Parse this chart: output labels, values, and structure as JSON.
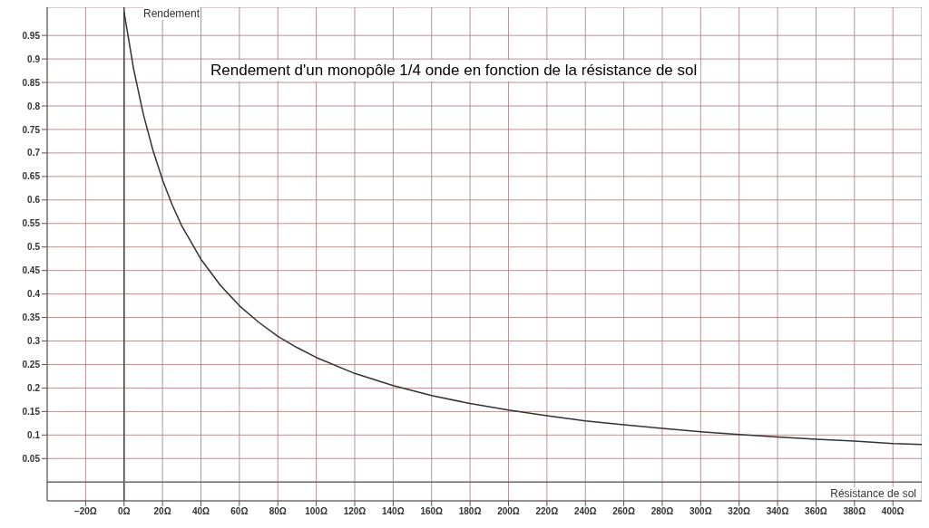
{
  "chart_data": {
    "type": "line",
    "title": "Rendement d'un monopôle 1/4 onde en fonction de la résistance de sol",
    "xlabel": "Résistance de sol",
    "ylabel": "Rendement",
    "series": [
      {
        "color": "#333333",
        "x": [
          0,
          5,
          10,
          15,
          20,
          25,
          30,
          40,
          50,
          60,
          70,
          80,
          90,
          100,
          120,
          140,
          160,
          180,
          200,
          220,
          240,
          260,
          280,
          300,
          320,
          340,
          360,
          380,
          400,
          415
        ],
        "values": [
          1.0,
          0.878,
          0.783,
          0.706,
          0.643,
          0.59,
          0.545,
          0.474,
          0.419,
          0.375,
          0.34,
          0.31,
          0.286,
          0.265,
          0.231,
          0.205,
          0.184,
          0.167,
          0.153,
          0.141,
          0.13,
          0.122,
          0.114,
          0.107,
          0.101,
          0.096,
          0.091,
          0.087,
          0.082,
          0.08
        ]
      }
    ],
    "xlim": [
      -40,
      415
    ],
    "ylim": [
      -0.04,
      1.01
    ],
    "xticks": [
      {
        "value": -20,
        "label": "−20Ω"
      },
      {
        "value": 0,
        "label": "0Ω"
      },
      {
        "value": 20,
        "label": "20Ω"
      },
      {
        "value": 40,
        "label": "40Ω"
      },
      {
        "value": 60,
        "label": "60Ω"
      },
      {
        "value": 80,
        "label": "80Ω"
      },
      {
        "value": 100,
        "label": "100Ω"
      },
      {
        "value": 120,
        "label": "120Ω"
      },
      {
        "value": 140,
        "label": "140Ω"
      },
      {
        "value": 160,
        "label": "160Ω"
      },
      {
        "value": 180,
        "label": "180Ω"
      },
      {
        "value": 200,
        "label": "200Ω"
      },
      {
        "value": 220,
        "label": "220Ω"
      },
      {
        "value": 240,
        "label": "240Ω"
      },
      {
        "value": 260,
        "label": "260Ω"
      },
      {
        "value": 280,
        "label": "280Ω"
      },
      {
        "value": 300,
        "label": "300Ω"
      },
      {
        "value": 320,
        "label": "320Ω"
      },
      {
        "value": 340,
        "label": "340Ω"
      },
      {
        "value": 360,
        "label": "360Ω"
      },
      {
        "value": 380,
        "label": "380Ω"
      },
      {
        "value": 400,
        "label": "400Ω"
      }
    ],
    "yticks": [
      0.05,
      0.1,
      0.15,
      0.2,
      0.25,
      0.3,
      0.35,
      0.4,
      0.45,
      0.5,
      0.55,
      0.6,
      0.65,
      0.7,
      0.75,
      0.8,
      0.85,
      0.9,
      0.95
    ],
    "grid": true,
    "marker": "none",
    "line_style": "solid"
  }
}
